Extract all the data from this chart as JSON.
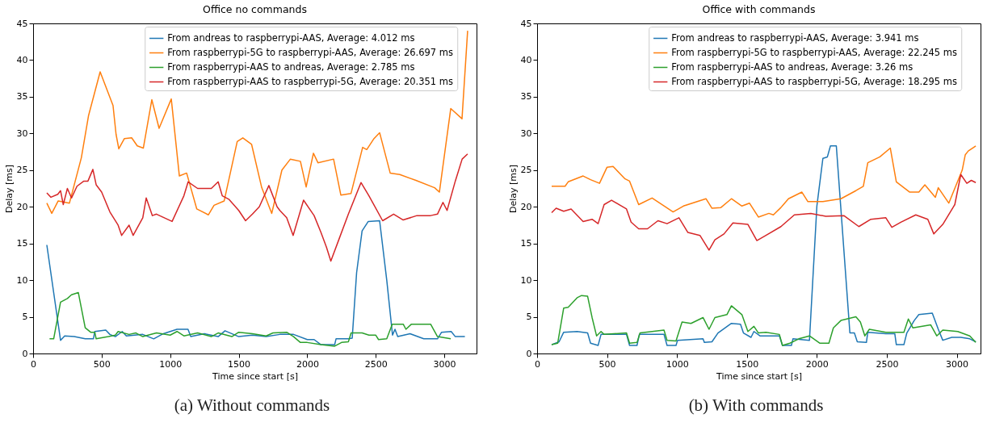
{
  "chart_data": [
    {
      "type": "line",
      "title": "Office no commands",
      "xlabel": "Time since start [s]",
      "ylabel": "Delay [ms]",
      "xlim": [
        0,
        3235
      ],
      "xticks": [
        0,
        500,
        1000,
        1500,
        2000,
        2500,
        3000
      ],
      "ylim": [
        0,
        45
      ],
      "yticks": [
        0,
        5,
        10,
        15,
        20,
        25,
        30,
        35,
        40,
        45
      ],
      "legend": "top right",
      "grid": false,
      "annotations": [
        "(a) Without commands"
      ],
      "series": [
        {
          "name": "From andreas to raspberrypi-AAS, Average: 4.012 ms",
          "color": "#1f77b4",
          "x": [
            100,
            200,
            230,
            300,
            380,
            440,
            450,
            530,
            560,
            600,
            650,
            680,
            800,
            880,
            950,
            1050,
            1130,
            1150,
            1250,
            1350,
            1400,
            1500,
            1600,
            1700,
            1800,
            1900,
            2000,
            2050,
            2100,
            2200,
            2210,
            2300,
            2328,
            2360,
            2400,
            2445,
            2528,
            2580,
            2622,
            2640,
            2660,
            2750,
            2850,
            2950,
            2980,
            3050,
            3080,
            3150
          ],
          "values": [
            14.8,
            1.8,
            2.4,
            2.3,
            2.0,
            2.0,
            3.0,
            3.2,
            2.6,
            2.3,
            3.0,
            2.4,
            2.6,
            2.0,
            2.7,
            3.3,
            3.3,
            2.3,
            2.7,
            2.3,
            3.1,
            2.3,
            2.5,
            2.3,
            2.6,
            2.6,
            1.9,
            1.9,
            1.2,
            1.2,
            2.0,
            2.0,
            2.1,
            11,
            16.7,
            18.0,
            18.1,
            10,
            2.5,
            3.3,
            2.3,
            2.7,
            2.0,
            2.0,
            2.9,
            3.0,
            2.3,
            2.3
          ]
        },
        {
          "name": "From raspberrypi-5G to raspberrypi-AAS, Average: 26.697 ms",
          "color": "#ff7f0e",
          "x": [
            100,
            136,
            183,
            265,
            352,
            404,
            489,
            583,
            605,
            625,
            666,
            719,
            760,
            804,
            866,
            919,
            1008,
            1067,
            1120,
            1194,
            1279,
            1320,
            1394,
            1489,
            1530,
            1594,
            1668,
            1741,
            1815,
            1877,
            1950,
            1992,
            2045,
            2078,
            2192,
            2245,
            2319,
            2404,
            2434,
            2487,
            2528,
            2605,
            2675,
            2793,
            2929,
            2964,
            3047,
            3129,
            3170
          ],
          "values": [
            20.5,
            19.1,
            20.8,
            20.5,
            26.7,
            32.4,
            38.4,
            33.8,
            29.9,
            27.9,
            29.3,
            29.4,
            28.3,
            28.0,
            34.6,
            30.7,
            34.7,
            24.2,
            24.6,
            19.7,
            18.9,
            20.2,
            20.8,
            28.9,
            29.4,
            28.5,
            22.6,
            19.1,
            25.0,
            26.5,
            26.2,
            22.7,
            27.3,
            26.0,
            26.5,
            21.6,
            21.8,
            28.1,
            27.8,
            29.3,
            30.1,
            24.6,
            24.4,
            23.6,
            22.6,
            22.0,
            33.4,
            32.0,
            44.0
          ]
        },
        {
          "name": "From raspberrypi-AAS to andreas, Average: 2.785 ms",
          "color": "#2ca02c",
          "x": [
            120,
            150,
            200,
            250,
            280,
            330,
            380,
            420,
            450,
            460,
            550,
            600,
            620,
            700,
            750,
            800,
            900,
            1000,
            1050,
            1100,
            1200,
            1300,
            1350,
            1450,
            1500,
            1600,
            1700,
            1750,
            1850,
            1900,
            1950,
            2000,
            2100,
            2200,
            2250,
            2300,
            2320,
            2400,
            2450,
            2500,
            2520,
            2580,
            2620,
            2700,
            2720,
            2760,
            2900,
            2950,
            3047
          ],
          "values": [
            2.0,
            2.0,
            7.0,
            7.5,
            8.0,
            8.3,
            3.5,
            2.9,
            2.9,
            2.0,
            2.3,
            2.5,
            3.0,
            2.6,
            2.8,
            2.3,
            2.8,
            2.5,
            3.0,
            2.4,
            2.8,
            2.3,
            2.8,
            2.3,
            2.9,
            2.7,
            2.4,
            2.8,
            2.9,
            2.3,
            1.5,
            1.5,
            1.2,
            1.0,
            1.5,
            1.6,
            2.8,
            2.8,
            2.5,
            2.5,
            1.9,
            2.0,
            4.0,
            4.0,
            3.3,
            4.0,
            4.0,
            2.3,
            2.0
          ]
        },
        {
          "name": "From raspberrypi-AAS to raspberrypi-5G, Average: 20.351 ms",
          "color": "#d62728",
          "x": [
            100,
            130,
            180,
            200,
            220,
            250,
            280,
            320,
            370,
            400,
            436,
            460,
            500,
            560,
            620,
            646,
            700,
            730,
            800,
            825,
            870,
            900,
            1014,
            1100,
            1131,
            1200,
            1300,
            1350,
            1380,
            1430,
            1500,
            1550,
            1600,
            1650,
            1720,
            1780,
            1800,
            1850,
            1897,
            1973,
            2050,
            2100,
            2140,
            2172,
            2230,
            2300,
            2392,
            2450,
            2550,
            2630,
            2700,
            2800,
            2900,
            2950,
            2990,
            3020,
            3080,
            3130,
            3170
          ],
          "values": [
            21.9,
            21.3,
            21.7,
            22.2,
            20.3,
            22.5,
            21.2,
            22.8,
            23.5,
            23.5,
            25.1,
            23.0,
            22.0,
            19.3,
            17.5,
            16.1,
            17.5,
            16.1,
            18.5,
            21.2,
            18.8,
            19.0,
            18.0,
            21.5,
            23.4,
            22.5,
            22.5,
            23.4,
            21.5,
            21.0,
            19.5,
            18.1,
            19.0,
            20.0,
            22.9,
            20.0,
            19.5,
            18.5,
            16.1,
            20.9,
            18.8,
            16.5,
            14.5,
            12.6,
            15.5,
            19.0,
            23.3,
            21.5,
            18.1,
            19.0,
            18.2,
            18.8,
            18.8,
            19.0,
            20.6,
            19.5,
            23.5,
            26.5,
            27.2
          ]
        }
      ]
    },
    {
      "type": "line",
      "title": "Office with commands",
      "xlabel": "Time since start [s]",
      "ylabel": "Delay [ms]",
      "xlim": [
        0,
        3170
      ],
      "xticks": [
        0,
        500,
        1000,
        1500,
        2000,
        2500,
        3000
      ],
      "ylim": [
        0,
        45
      ],
      "yticks": [
        0,
        5,
        10,
        15,
        20,
        25,
        30,
        35,
        40,
        45
      ],
      "legend": "top right",
      "grid": false,
      "annotations": [
        "(b) With commands"
      ],
      "series": [
        {
          "name": "From andreas to raspberrypi-AAS, Average: 3.941 ms",
          "color": "#1f77b4",
          "x": [
            104,
            157,
            190,
            286,
            361,
            382,
            436,
            457,
            639,
            661,
            714,
            731,
            907,
            929,
            993,
            1004,
            1186,
            1196,
            1250,
            1293,
            1389,
            1454,
            1475,
            1529,
            1550,
            1593,
            1732,
            1754,
            1818,
            1829,
            1947,
            2000,
            2043,
            2075,
            2097,
            2139,
            2236,
            2268,
            2289,
            2354,
            2364,
            2493,
            2557,
            2568,
            2622,
            2643,
            2696,
            2729,
            2825,
            2868,
            2900,
            2964,
            3029,
            3093,
            3136
          ],
          "values": [
            1.2,
            1.6,
            2.9,
            3.0,
            2.8,
            1.4,
            1.1,
            2.6,
            2.6,
            1.1,
            1.1,
            2.6,
            2.6,
            1.1,
            1.1,
            1.8,
            2.0,
            1.5,
            1.6,
            2.8,
            4.1,
            4.0,
            2.8,
            2.2,
            3.0,
            2.4,
            2.4,
            1.1,
            1.1,
            2.0,
            1.8,
            20.1,
            26.6,
            26.8,
            28.3,
            28.3,
            2.8,
            2.8,
            1.6,
            1.5,
            2.9,
            2.7,
            2.7,
            1.2,
            1.2,
            2.8,
            4.5,
            5.3,
            5.5,
            3.3,
            1.8,
            2.2,
            2.2,
            2.0,
            1.6
          ]
        },
        {
          "name": "From raspberrypi-5G to raspberrypi-AAS, Average: 22.245 ms",
          "color": "#ff7f0e",
          "x": [
            104,
            200,
            222,
            329,
            382,
            446,
            500,
            543,
            629,
            661,
            726,
            822,
            972,
            1046,
            1207,
            1250,
            1314,
            1389,
            1464,
            1518,
            1582,
            1657,
            1689,
            1743,
            1797,
            1893,
            1936,
            2043,
            2172,
            2279,
            2332,
            2364,
            2450,
            2525,
            2568,
            2664,
            2729,
            2772,
            2847,
            2868,
            2943,
            3039,
            3061,
            3082,
            3136
          ],
          "values": [
            22.8,
            22.8,
            23.4,
            24.2,
            23.7,
            23.2,
            25.4,
            25.5,
            23.8,
            23.5,
            20.3,
            21.2,
            19.3,
            20.1,
            21.1,
            19.8,
            19.9,
            21.1,
            20.1,
            20.5,
            18.6,
            19.1,
            18.9,
            19.9,
            21.1,
            22.0,
            20.7,
            20.7,
            21.1,
            22.2,
            22.8,
            26.0,
            26.8,
            28.0,
            23.4,
            22.0,
            22.0,
            23.0,
            21.3,
            22.6,
            20.5,
            25.0,
            27.1,
            27.6,
            28.3
          ]
        },
        {
          "name": "From raspberrypi-AAS to andreas, Average: 3.26 ms",
          "color": "#2ca02c",
          "x": [
            104,
            147,
            190,
            222,
            286,
            318,
            361,
            393,
            425,
            457,
            479,
            639,
            661,
            714,
            736,
            822,
            907,
            929,
            993,
            1036,
            1100,
            1186,
            1229,
            1271,
            1357,
            1389,
            1464,
            1507,
            1550,
            1582,
            1636,
            1732,
            1754,
            1807,
            1871,
            1947,
            2022,
            2086,
            2118,
            2172,
            2279,
            2311,
            2343,
            2375,
            2493,
            2622,
            2654,
            2686,
            2814,
            2857,
            2900,
            3007,
            3093,
            3136
          ],
          "values": [
            1.2,
            1.4,
            6.2,
            6.3,
            7.6,
            7.9,
            7.8,
            4.9,
            2.4,
            3.0,
            2.6,
            2.8,
            1.4,
            1.5,
            2.8,
            3.0,
            3.2,
            1.8,
            1.7,
            4.3,
            4.1,
            4.9,
            3.3,
            4.9,
            5.3,
            6.5,
            5.3,
            3.0,
            3.7,
            2.8,
            2.9,
            2.6,
            1.1,
            1.4,
            2.0,
            2.4,
            1.4,
            1.4,
            3.5,
            4.5,
            5.0,
            4.3,
            2.4,
            3.3,
            2.9,
            2.9,
            4.7,
            3.5,
            3.9,
            2.4,
            3.2,
            3.0,
            2.4,
            1.5
          ]
        },
        {
          "name": "From raspberrypi-AAS to raspberrypi-5G, Average: 18.295 ms",
          "color": "#d62728",
          "x": [
            104,
            136,
            190,
            243,
            329,
            393,
            436,
            479,
            532,
            639,
            672,
            726,
            789,
            864,
            929,
            1014,
            1078,
            1164,
            1229,
            1271,
            1336,
            1400,
            1507,
            1571,
            1636,
            1743,
            1839,
            1957,
            2064,
            2193,
            2300,
            2386,
            2493,
            2536,
            2600,
            2707,
            2793,
            2836,
            2900,
            2986,
            3029,
            3072,
            3104,
            3136
          ],
          "values": [
            19.2,
            19.8,
            19.4,
            19.7,
            18.0,
            18.3,
            17.7,
            20.3,
            20.9,
            19.7,
            17.9,
            17.0,
            17.0,
            18.1,
            17.7,
            18.5,
            16.5,
            16.1,
            14.1,
            15.5,
            16.3,
            17.8,
            17.6,
            15.4,
            16.1,
            17.3,
            18.9,
            19.1,
            18.7,
            18.8,
            17.3,
            18.3,
            18.5,
            17.2,
            17.9,
            18.9,
            18.3,
            16.3,
            17.6,
            20.3,
            24.4,
            23.2,
            23.6,
            23.3
          ]
        }
      ]
    }
  ]
}
